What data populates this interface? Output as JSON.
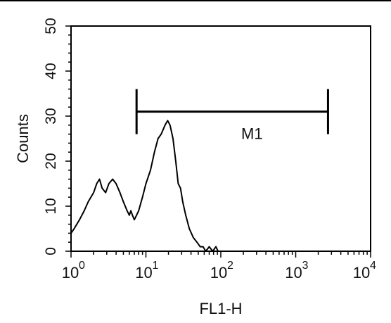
{
  "chart_data": {
    "type": "line",
    "title": "",
    "xlabel": "FL1-H",
    "ylabel": "Counts",
    "x_scale": "log",
    "xlim": [
      1,
      10000
    ],
    "ylim": [
      0,
      50
    ],
    "grid": false,
    "x_ticks": [
      {
        "value": 1,
        "base": "10",
        "exp": "0"
      },
      {
        "value": 10,
        "base": "10",
        "exp": "1"
      },
      {
        "value": 100,
        "base": "10",
        "exp": "2"
      },
      {
        "value": 1000,
        "base": "10",
        "exp": "3"
      },
      {
        "value": 10000,
        "base": "10",
        "exp": "4"
      }
    ],
    "y_ticks": [
      {
        "value": 0,
        "label": "0"
      },
      {
        "value": 10,
        "label": "10"
      },
      {
        "value": 20,
        "label": "20"
      },
      {
        "value": 30,
        "label": "30"
      },
      {
        "value": 40,
        "label": "40"
      },
      {
        "value": 50,
        "label": "50"
      }
    ],
    "series": [
      {
        "color": "#000000",
        "points": [
          [
            1.0,
            4
          ],
          [
            1.1,
            5
          ],
          [
            1.3,
            7
          ],
          [
            1.5,
            9
          ],
          [
            1.7,
            11
          ],
          [
            2.0,
            13
          ],
          [
            2.2,
            15
          ],
          [
            2.4,
            16
          ],
          [
            2.6,
            14
          ],
          [
            2.9,
            13
          ],
          [
            3.2,
            15
          ],
          [
            3.6,
            16
          ],
          [
            4.0,
            15
          ],
          [
            4.5,
            13
          ],
          [
            5.0,
            11
          ],
          [
            5.6,
            9
          ],
          [
            6.0,
            8
          ],
          [
            6.3,
            9
          ],
          [
            6.6,
            8
          ],
          [
            7.0,
            7
          ],
          [
            7.5,
            8
          ],
          [
            8.0,
            9
          ],
          [
            9.0,
            12
          ],
          [
            10.0,
            15
          ],
          [
            11.5,
            18
          ],
          [
            13.0,
            22
          ],
          [
            14.5,
            25
          ],
          [
            16.0,
            26
          ],
          [
            18.0,
            28
          ],
          [
            19.5,
            29
          ],
          [
            21.0,
            28
          ],
          [
            23.0,
            25
          ],
          [
            25.0,
            20
          ],
          [
            27.0,
            15
          ],
          [
            29.0,
            14
          ],
          [
            31.0,
            11
          ],
          [
            34.0,
            8
          ],
          [
            38.0,
            5
          ],
          [
            43.0,
            3
          ],
          [
            48.0,
            2
          ],
          [
            53.0,
            1
          ],
          [
            58.0,
            1
          ],
          [
            63.0,
            0
          ],
          [
            70.0,
            1
          ],
          [
            78.0,
            0
          ],
          [
            86.0,
            1
          ],
          [
            92.0,
            0
          ],
          [
            110.0,
            0
          ],
          [
            200.0,
            0
          ],
          [
            500.0,
            0
          ],
          [
            1000.0,
            0
          ],
          [
            3000.0,
            0
          ],
          [
            10000.0,
            0
          ]
        ]
      }
    ],
    "markers": [
      {
        "label": "M1",
        "x_start": 7.5,
        "x_end": 2700,
        "y": 31
      }
    ]
  }
}
